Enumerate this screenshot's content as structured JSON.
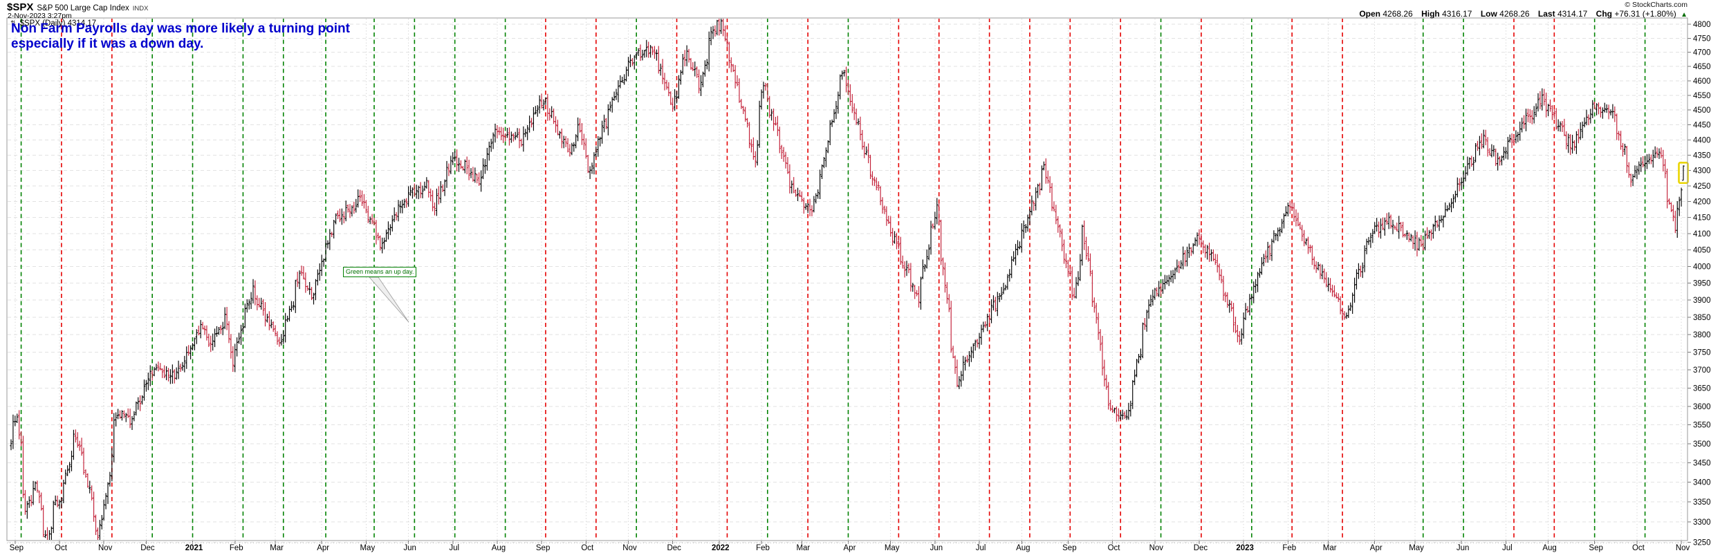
{
  "header": {
    "symbol": "$SPX",
    "name": "S&P 500 Large Cap Index",
    "exchange": "INDX",
    "datetime": "2-Nov-2023 3:27pm",
    "legend_icon": "⇅",
    "legend": "$SPX (Daily) 4314.17"
  },
  "quote": {
    "open_label": "Open",
    "open_value": "4268.26",
    "high_label": "High",
    "high_value": "4316.17",
    "low_label": "Low",
    "low_value": "4268.26",
    "last_label": "Last",
    "last_value": "4314.17",
    "chg_label": "Chg",
    "chg_value": "+76.31 (+1.80%)",
    "direction_arrow": "▲",
    "copyright": "© StockCharts.com"
  },
  "annotation": {
    "line1": "Non Farm Payrolls day was more likely a turning point",
    "line2": "especially if it was a down day.",
    "color": "#0000cc"
  },
  "callout": {
    "text": "Green means an up day.",
    "color": "#007000"
  },
  "chart_data": {
    "type": "bar",
    "style": "daily OHLC bars",
    "symbol": "$SPX",
    "timeframe": "Daily",
    "date_range": [
      "2020-08-28",
      "2023-11-02"
    ],
    "y_axis": {
      "scale": "log",
      "tick_min": 3250,
      "tick_max": 4800,
      "tick_step": 50,
      "visible_range": [
        3254,
        4823
      ]
    },
    "x_axis": {
      "labels": [
        "Sep",
        "Oct",
        "Nov",
        "Dec",
        "2021",
        "Feb",
        "Mar",
        "Apr",
        "May",
        "Jun",
        "Jul",
        "Aug",
        "Sep",
        "Oct",
        "Nov",
        "Dec",
        "2022",
        "Feb",
        "Mar",
        "Apr",
        "May",
        "Jun",
        "Jul",
        "Aug",
        "Sep",
        "Oct",
        "Nov",
        "Dec",
        "2023",
        "Feb",
        "Mar",
        "Apr",
        "May",
        "Jun",
        "Jul",
        "Aug",
        "Sep",
        "Oct",
        "Nov"
      ]
    },
    "nfp_lines": [
      {
        "ym": "2020-09",
        "dir": "up"
      },
      {
        "ym": "2020-10",
        "dir": "down"
      },
      {
        "ym": "2020-11",
        "dir": "down"
      },
      {
        "ym": "2020-12",
        "dir": "up"
      },
      {
        "ym": "2021-01",
        "dir": "up"
      },
      {
        "ym": "2021-02",
        "dir": "up"
      },
      {
        "ym": "2021-03",
        "dir": "up"
      },
      {
        "ym": "2021-04",
        "dir": "up",
        "day": 5
      },
      {
        "ym": "2021-05",
        "dir": "up"
      },
      {
        "ym": "2021-06",
        "dir": "up"
      },
      {
        "ym": "2021-07",
        "dir": "up"
      },
      {
        "ym": "2021-08",
        "dir": "up"
      },
      {
        "ym": "2021-09",
        "dir": "down"
      },
      {
        "ym": "2021-10",
        "dir": "down",
        "day": 8
      },
      {
        "ym": "2021-11",
        "dir": "up"
      },
      {
        "ym": "2021-12",
        "dir": "down"
      },
      {
        "ym": "2022-01",
        "dir": "down",
        "day": 7
      },
      {
        "ym": "2022-02",
        "dir": "up"
      },
      {
        "ym": "2022-03",
        "dir": "down"
      },
      {
        "ym": "2022-04",
        "dir": "up"
      },
      {
        "ym": "2022-05",
        "dir": "down"
      },
      {
        "ym": "2022-06",
        "dir": "down"
      },
      {
        "ym": "2022-07",
        "dir": "down",
        "day": 8
      },
      {
        "ym": "2022-08",
        "dir": "down"
      },
      {
        "ym": "2022-09",
        "dir": "down"
      },
      {
        "ym": "2022-10",
        "dir": "down",
        "day": 7
      },
      {
        "ym": "2022-11",
        "dir": "up"
      },
      {
        "ym": "2022-12",
        "dir": "down"
      },
      {
        "ym": "2023-01",
        "dir": "up"
      },
      {
        "ym": "2023-02",
        "dir": "down"
      },
      {
        "ym": "2023-03",
        "dir": "down",
        "day": 10
      },
      {
        "ym": "2023-05",
        "dir": "up"
      },
      {
        "ym": "2023-06",
        "dir": "up"
      },
      {
        "ym": "2023-07",
        "dir": "down",
        "day": 7
      },
      {
        "ym": "2023-08",
        "dir": "down"
      },
      {
        "ym": "2023-09",
        "dir": "up"
      },
      {
        "ym": "2023-10",
        "dir": "up"
      }
    ],
    "anchors": [
      [
        "2020-08-28",
        3508
      ],
      [
        "2020-09-02",
        3580
      ],
      [
        "2020-09-08",
        3332
      ],
      [
        "2020-09-15",
        3401
      ],
      [
        "2020-09-23",
        3237
      ],
      [
        "2020-09-28",
        3352
      ],
      [
        "2020-10-02",
        3348
      ],
      [
        "2020-10-12",
        3534
      ],
      [
        "2020-10-19",
        3427
      ],
      [
        "2020-10-28",
        3271
      ],
      [
        "2020-11-03",
        3369
      ],
      [
        "2020-11-09",
        3550
      ],
      [
        "2020-11-13",
        3585
      ],
      [
        "2020-11-20",
        3558
      ],
      [
        "2020-12-04",
        3699
      ],
      [
        "2020-12-21",
        3687
      ],
      [
        "2020-12-31",
        3756
      ],
      [
        "2021-01-08",
        3825
      ],
      [
        "2021-01-15",
        3768
      ],
      [
        "2021-01-25",
        3855
      ],
      [
        "2021-01-29",
        3714
      ],
      [
        "2021-02-12",
        3935
      ],
      [
        "2021-02-25",
        3829
      ],
      [
        "2021-03-04",
        3768
      ],
      [
        "2021-03-17",
        3974
      ],
      [
        "2021-03-25",
        3909
      ],
      [
        "2021-04-09",
        4129
      ],
      [
        "2021-04-29",
        4211
      ],
      [
        "2021-05-12",
        4063
      ],
      [
        "2021-05-28",
        4204
      ],
      [
        "2021-06-14",
        4255
      ],
      [
        "2021-06-18",
        4166
      ],
      [
        "2021-07-02",
        4352
      ],
      [
        "2021-07-19",
        4258
      ],
      [
        "2021-07-29",
        4419
      ],
      [
        "2021-08-18",
        4400
      ],
      [
        "2021-09-02",
        4537
      ],
      [
        "2021-09-20",
        4358
      ],
      [
        "2021-09-27",
        4443
      ],
      [
        "2021-10-04",
        4300
      ],
      [
        "2021-10-21",
        4550
      ],
      [
        "2021-11-05",
        4698
      ],
      [
        "2021-11-18",
        4705
      ],
      [
        "2021-12-01",
        4513
      ],
      [
        "2021-12-10",
        4712
      ],
      [
        "2021-12-20",
        4568
      ],
      [
        "2021-12-29",
        4793
      ],
      [
        "2022-01-04",
        4794
      ],
      [
        "2022-01-27",
        4327
      ],
      [
        "2022-02-02",
        4589
      ],
      [
        "2022-02-23",
        4226
      ],
      [
        "2022-03-08",
        4171
      ],
      [
        "2022-03-29",
        4632
      ],
      [
        "2022-04-06",
        4481
      ],
      [
        "2022-04-29",
        4132
      ],
      [
        "2022-05-20",
        3901
      ],
      [
        "2022-06-02",
        4177
      ],
      [
        "2022-06-16",
        3667
      ],
      [
        "2022-06-30",
        3785
      ],
      [
        "2022-07-19",
        3937
      ],
      [
        "2022-08-16",
        4305
      ],
      [
        "2022-09-06",
        3908
      ],
      [
        "2022-09-12",
        4110
      ],
      [
        "2022-09-30",
        3586
      ],
      [
        "2022-10-12",
        3577
      ],
      [
        "2022-10-28",
        3901
      ],
      [
        "2022-11-10",
        3956
      ],
      [
        "2022-11-30",
        4080
      ],
      [
        "2022-12-13",
        4020
      ],
      [
        "2022-12-28",
        3783
      ],
      [
        "2023-01-13",
        3999
      ],
      [
        "2023-02-02",
        4180
      ],
      [
        "2023-02-24",
        3970
      ],
      [
        "2023-03-13",
        3856
      ],
      [
        "2023-03-31",
        4109
      ],
      [
        "2023-04-14",
        4138
      ],
      [
        "2023-05-04",
        4061
      ],
      [
        "2023-05-26",
        4205
      ],
      [
        "2023-06-16",
        4410
      ],
      [
        "2023-06-26",
        4329
      ],
      [
        "2023-07-27",
        4537
      ],
      [
        "2023-08-18",
        4370
      ],
      [
        "2023-08-31",
        4508
      ],
      [
        "2023-09-14",
        4505
      ],
      [
        "2023-09-27",
        4274
      ],
      [
        "2023-10-17",
        4373
      ],
      [
        "2023-10-27",
        4117
      ],
      [
        "2023-11-01",
        4238
      ],
      [
        "2023-11-02",
        4314
      ]
    ],
    "last_bar": {
      "open": 4268.26,
      "high": 4316.17,
      "low": 4268.26,
      "close": 4314.17
    },
    "colors": {
      "up_bar": "#000000",
      "down_bar": "#c21e36",
      "nfp_up": "#008200",
      "nfp_down": "#e40000",
      "grid": "#e2e2e2",
      "month_grid": "#d9d9d9",
      "border": "#9a9a9a",
      "highlight": "#ead500"
    }
  }
}
